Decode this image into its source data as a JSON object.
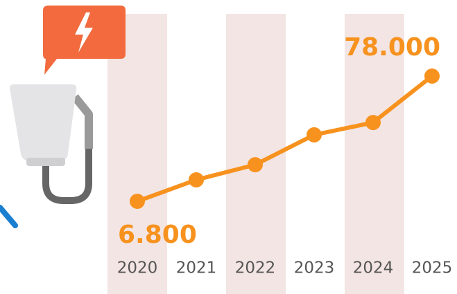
{
  "chart_data": {
    "type": "line",
    "x": [
      2020,
      2021,
      2022,
      2023,
      2024,
      2025
    ],
    "values": [
      6800,
      19000,
      27600,
      44600,
      51600,
      78000
    ],
    "value_labels": [
      "6.800",
      null,
      null,
      null,
      null,
      "78.000"
    ],
    "color": "#f7921e"
  }
}
